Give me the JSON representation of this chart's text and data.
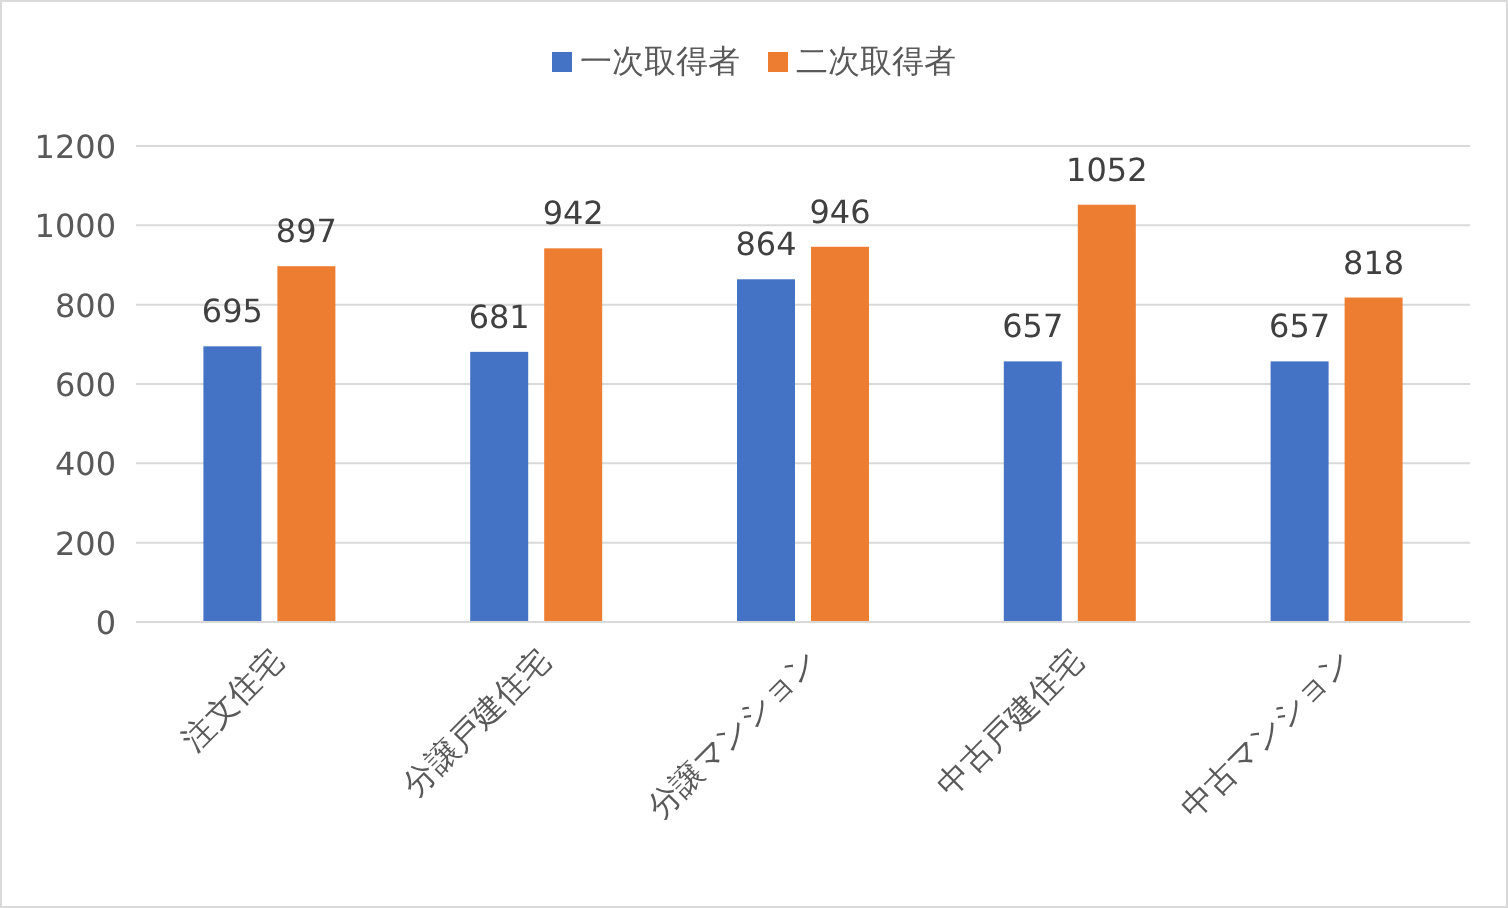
{
  "chart_data": {
    "type": "bar",
    "categories": [
      "注文住宅",
      "分譲戸建住宅",
      "分譲マンション",
      "中古戸建住宅",
      "中古マンション"
    ],
    "series": [
      {
        "name": "一次取得者",
        "color": "#4472c4",
        "values": [
          695,
          681,
          864,
          657,
          657
        ]
      },
      {
        "name": "二次取得者",
        "color": "#ed7d31",
        "values": [
          897,
          942,
          946,
          1052,
          818
        ]
      }
    ],
    "ylim": [
      0,
      1200
    ],
    "yticks": [
      0,
      200,
      400,
      600,
      800,
      1000,
      1200
    ],
    "grid": "y",
    "legend": "top",
    "data_labels": true
  }
}
